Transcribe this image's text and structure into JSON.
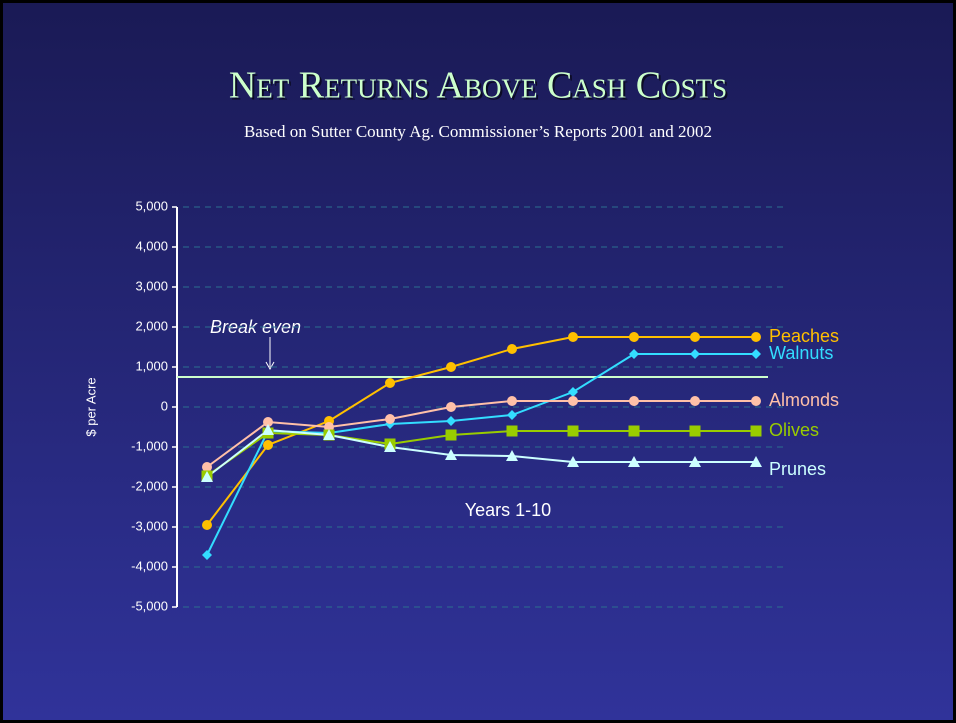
{
  "chart_data": {
    "type": "line",
    "title": "Net Returns Above Cash Costs",
    "subtitle": "Based on Sutter County Ag. Commissioner’s Reports 2001 and 2002",
    "y_label": "$ per Acre",
    "x_label": "Years 1-10",
    "annotation": "Break even",
    "break_even": 750,
    "categories": [
      null,
      null,
      null,
      null,
      null,
      null,
      null,
      null,
      null,
      null
    ],
    "ylim": [
      -5000,
      5000
    ],
    "yticks": [
      {
        "value": -5000,
        "label": "-5,000"
      },
      {
        "value": -4000,
        "label": "-4,000"
      },
      {
        "value": -3000,
        "label": "-3,000"
      },
      {
        "value": -2000,
        "label": "-2,000"
      },
      {
        "value": -1000,
        "label": "-1,000"
      },
      0,
      {
        "value": 1000,
        "label": "1,000"
      },
      {
        "value": 2000,
        "label": "2,000"
      },
      {
        "value": 3000,
        "label": "3,000"
      },
      {
        "value": 4000,
        "label": "4,000"
      },
      {
        "value": 5000,
        "label": "5,000"
      }
    ],
    "grid": true,
    "series": [
      {
        "name": "Peaches",
        "color": "#ffc000",
        "marker": "circle",
        "values": [
          -2950,
          -950,
          -350,
          600,
          1000,
          1450,
          1750,
          1750,
          1750,
          1750
        ]
      },
      {
        "name": "Walnuts",
        "color": "#33ddff",
        "marker": "diamond",
        "values": [
          -3700,
          -600,
          -650,
          -425,
          -350,
          -200,
          375,
          1325,
          1325,
          1325
        ]
      },
      {
        "name": "Almonds",
        "color": "#ffc0a8",
        "marker": "circle",
        "values": [
          -1500,
          -375,
          -500,
          -300,
          0,
          150,
          150,
          150,
          150,
          150
        ]
      },
      {
        "name": "Olives",
        "color": "#99cc00",
        "marker": "square",
        "values": [
          -1725,
          -650,
          -700,
          -925,
          -700,
          -600,
          -600,
          -600,
          -600,
          -600
        ]
      },
      {
        "name": "Prunes",
        "color": "#ccffff",
        "marker": "triangle",
        "values": [
          -1750,
          -575,
          -700,
          -1000,
          -1200,
          -1225,
          -1375,
          -1375,
          -1375,
          -1375
        ]
      }
    ]
  }
}
